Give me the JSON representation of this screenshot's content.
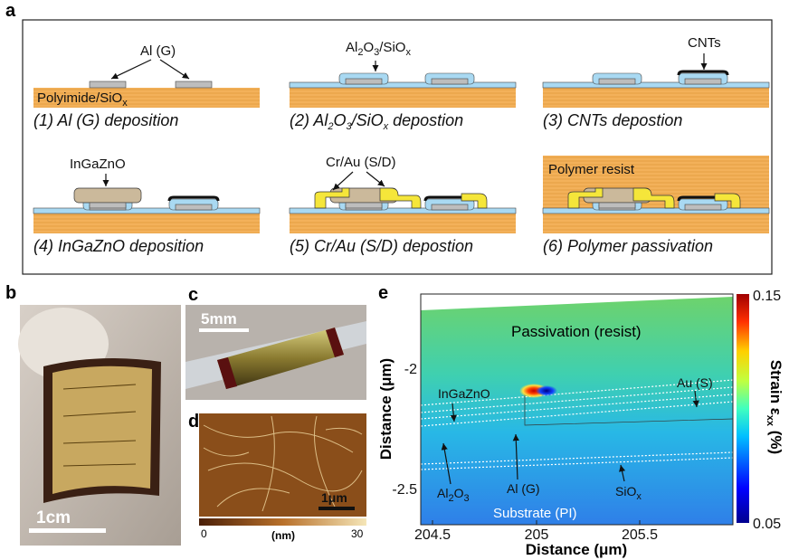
{
  "panel_labels": {
    "a": "a",
    "b": "b",
    "c": "c",
    "d": "d",
    "e": "e"
  },
  "panel_a": {
    "step1": {
      "caption": "(1) Al (G) deposition",
      "gate_label": "Al (G)",
      "substrate_label": [
        "Polyimide/SiO",
        "x"
      ]
    },
    "step2": {
      "caption": [
        "(2) Al",
        "2",
        "O",
        "3",
        "/SiO",
        "x",
        " depostion"
      ],
      "layer_label": [
        "Al",
        "2",
        "O",
        "3",
        "/SiO",
        "x"
      ]
    },
    "step3": {
      "caption": "(3) CNTs depostion",
      "label": "CNTs"
    },
    "step4": {
      "caption": "(4) InGaZnO deposition",
      "label": "InGaZnO"
    },
    "step5": {
      "caption": "(5) Cr/Au (S/D) depostion",
      "label": "Cr/Au (S/D)"
    },
    "step6": {
      "caption": "(6) Polymer passivation",
      "label": "Polymer resist"
    }
  },
  "panel_b": {
    "scale_bar": "1cm"
  },
  "panel_c": {
    "scale_bar": "5mm"
  },
  "panel_d": {
    "scale_bar": "1μm",
    "colorbar_min": 0,
    "colorbar_unit": "(nm)",
    "colorbar_max": 30
  },
  "panel_e": {
    "x_label": "Distance (μm)",
    "y_label": "Distance (μm)",
    "xticks": [
      204.5,
      205,
      205.5
    ],
    "yticks": [
      -2,
      -2.5
    ],
    "colorbar_label": [
      "Strain ε",
      "xx",
      " (%)"
    ],
    "colorbar_ticks": [
      0.15,
      0.05
    ],
    "annotations": {
      "passivation": "Passivation (resist)",
      "ingazno": "InGaZnO",
      "au": "Au (S)",
      "al2o3": [
        "Al",
        "2",
        "O",
        "3"
      ],
      "al": "Al (G)",
      "siox": [
        "SiO",
        "x"
      ],
      "substrate": "Substrate (PI)"
    }
  }
}
